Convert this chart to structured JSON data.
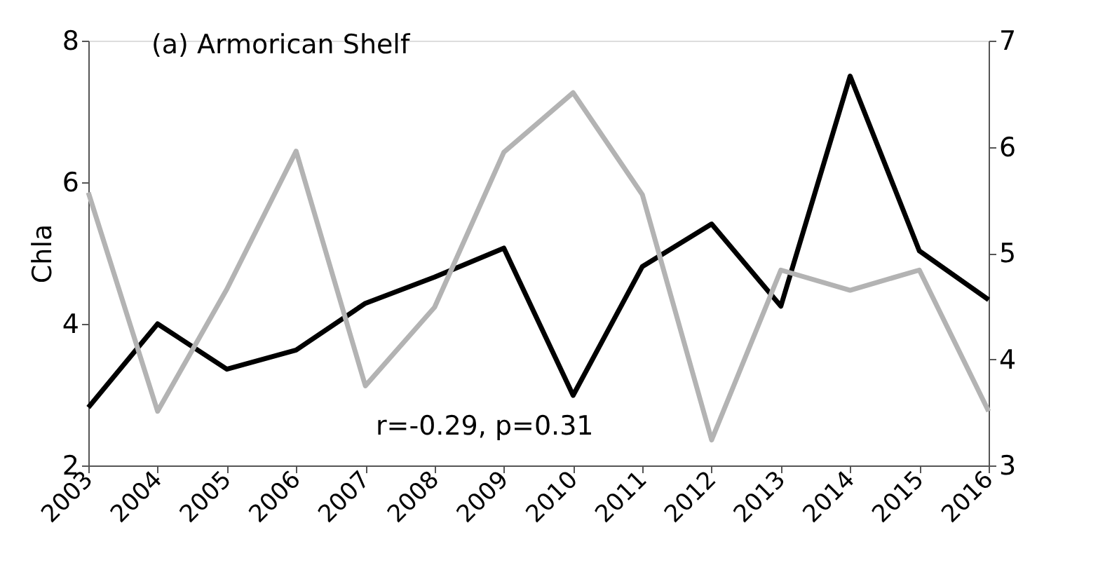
{
  "chart_data": {
    "type": "line",
    "title": "(a) Armorican Shelf",
    "ylabel": "Chla",
    "categories": [
      "2003",
      "2004",
      "2005",
      "2006",
      "2007",
      "2008",
      "2009",
      "2010",
      "2011",
      "2012",
      "2013",
      "2014",
      "2015",
      "2016"
    ],
    "series": [
      {
        "color": "#000000",
        "values": [
          2.82,
          4.0,
          3.36,
          3.63,
          4.29,
          4.66,
          5.07,
          2.99,
          4.81,
          5.41,
          4.25,
          7.5,
          5.03,
          4.34
        ]
      },
      {
        "color": "#b3b3b3",
        "axis": "y2",
        "values": [
          5.57,
          3.51,
          4.66,
          5.96,
          3.75,
          4.49,
          5.95,
          6.51,
          5.55,
          3.24,
          4.84,
          4.65,
          4.84,
          3.51
        ]
      }
    ],
    "ylim": [
      2,
      8
    ],
    "yticks": [
      2,
      4,
      6,
      8
    ],
    "y2lim": [
      3,
      7
    ],
    "y2ticks": [
      3,
      4,
      5,
      6,
      7
    ],
    "annotations": [
      "r=-0.29,  p=0.31"
    ],
    "grid": false,
    "marker": "none",
    "line_style": "solid"
  }
}
